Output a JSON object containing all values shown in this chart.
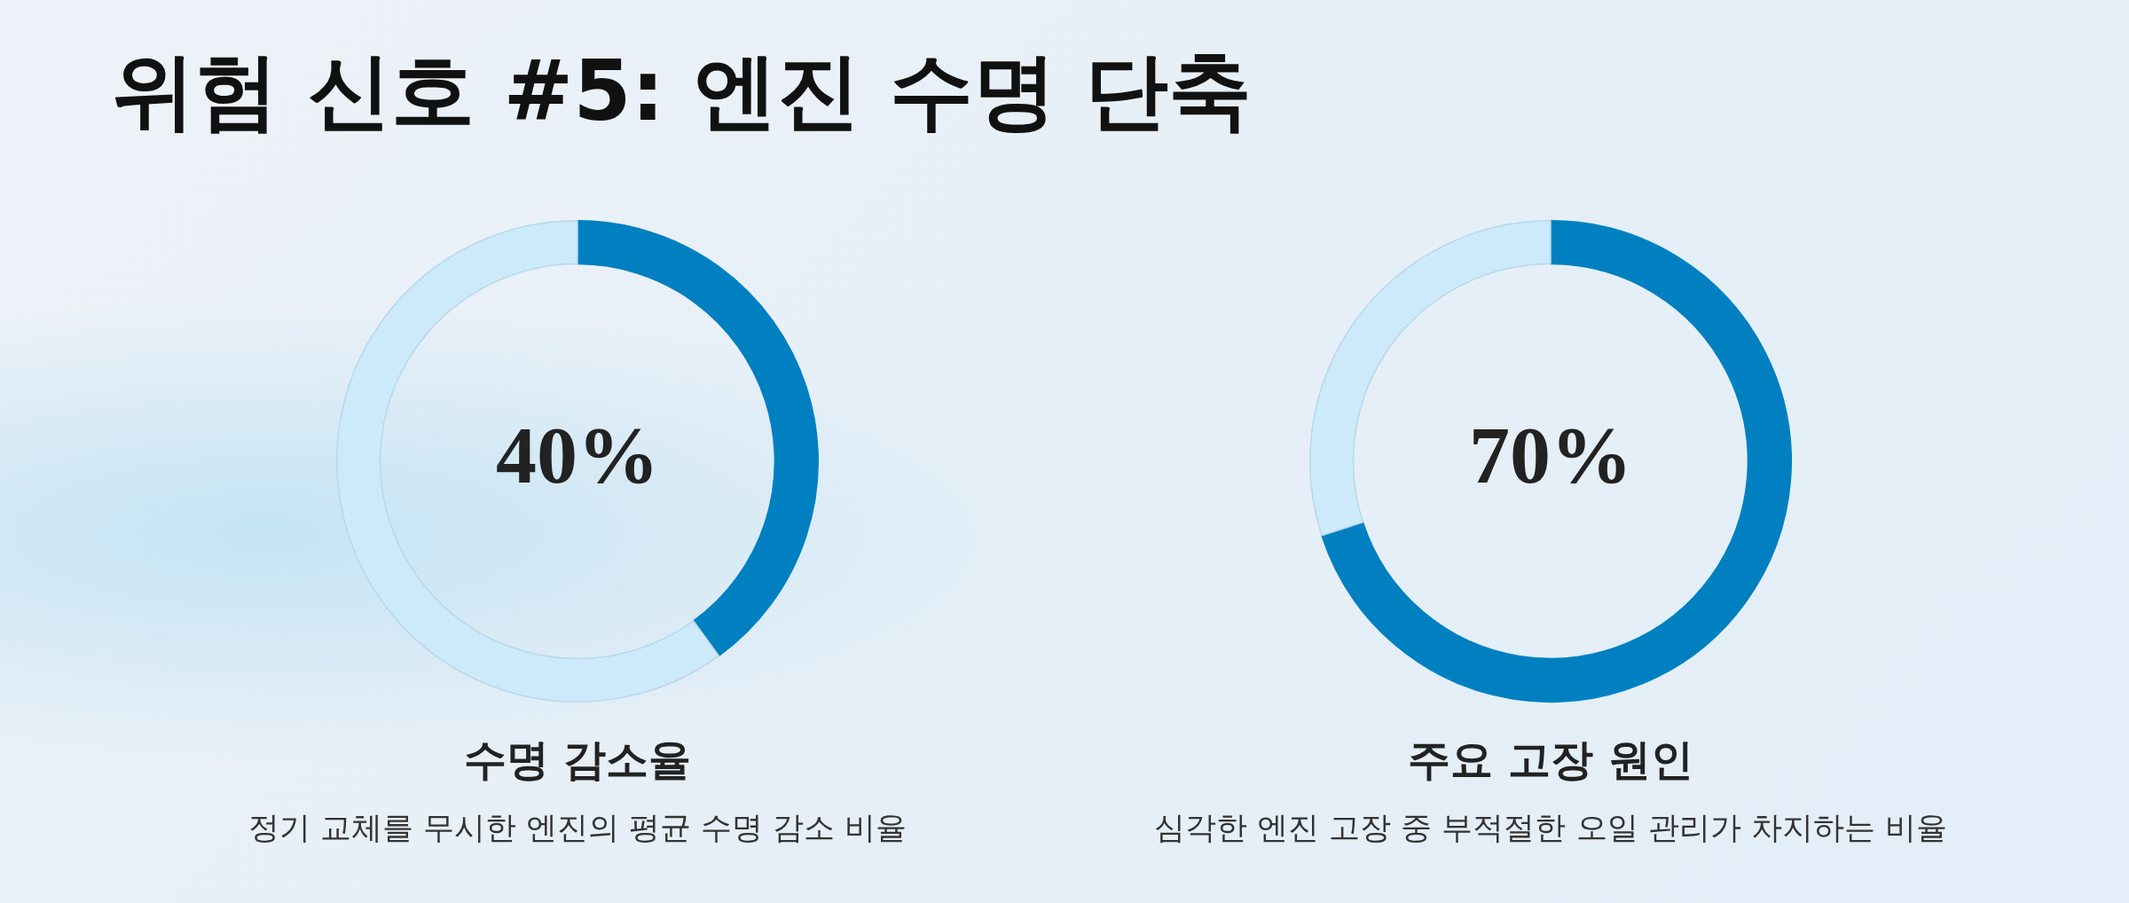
{
  "chart_data": [
    {
      "type": "other",
      "title": "위험 신호 #5: 엔진 수명 단축"
    },
    {
      "type": "donut",
      "title": "수명 감소율",
      "subtitle": "정기 교체를 무시한 엔진의 평균 수명 감소 비율",
      "categories": [
        null,
        null
      ],
      "values": [
        40,
        60
      ],
      "colors": [
        "#0080c0",
        "#cceafa"
      ],
      "value_labels": [
        "40%",
        null
      ]
    },
    {
      "type": "donut",
      "title": "주요 고장 원인",
      "subtitle": "심각한 엔진 고장 중 부적절한 오일 관리가 차지하는 비율",
      "categories": [
        null,
        null
      ],
      "values": [
        70,
        30
      ],
      "colors": [
        "#0080c0",
        "#cceafa"
      ],
      "value_labels": [
        "70%",
        null
      ]
    }
  ]
}
